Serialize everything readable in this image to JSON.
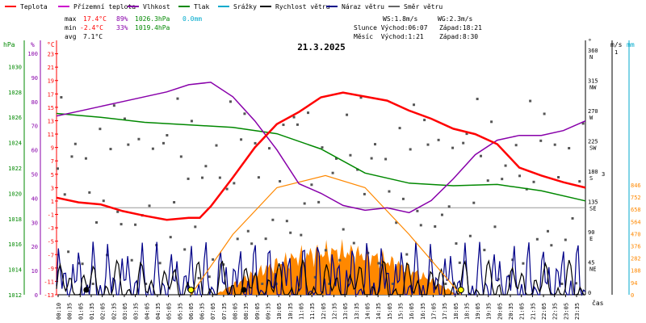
{
  "chart_data": {
    "type": "line",
    "title": "21.3.2025",
    "legend": [
      {
        "label": "Teplota",
        "color": "#ff0000"
      },
      {
        "label": "Přízemní teplota",
        "color": "#cc00cc"
      },
      {
        "label": "Vlhkost",
        "color": "#8800aa"
      },
      {
        "label": "Tlak",
        "color": "#008800"
      },
      {
        "label": "Srážky",
        "color": "#00aacc"
      },
      {
        "label": "Rychlost větru",
        "color": "#000000"
      },
      {
        "label": "Náraz větru",
        "color": "#000088"
      },
      {
        "label": "Směr větru",
        "color": "#666666"
      }
    ],
    "stats": {
      "max_label": "max",
      "min_label": "min",
      "avg_label": "avg",
      "max_temp": "17.4°C",
      "max_hum": "89%",
      "max_press": "1026.3hPa",
      "max_rain": "0.0mm",
      "min_temp": "-2.4°C",
      "min_hum": "33%",
      "min_press": "1019.4hPa",
      "avg_temp": "7.1°C",
      "ws": "WS:1.8m/s",
      "wg": "WG:2.3m/s",
      "sun": "Slunce Východ:06:07   Západ:18:21",
      "moon": "Měsíc  Východ:1:21    Západ:8:30"
    },
    "axes": {
      "hpa_title": "hPa",
      "pct_title": "%",
      "c_title": "°C",
      "deg_title": "°",
      "ms_title": "m/s",
      "mm_title": "mm",
      "x_title": "čas",
      "hpa_ticks": [
        "1030",
        "1028",
        "1026",
        "1024",
        "1022",
        "1020",
        "1018",
        "1016",
        "1014",
        "1012"
      ],
      "pct_ticks": [
        "100",
        "90",
        "80",
        "70",
        "60",
        "50",
        "40",
        "30",
        "20",
        "10",
        "0"
      ],
      "c_ticks": [
        "23",
        "21",
        "19",
        "17",
        "15",
        "13",
        "11",
        "9",
        "7",
        "5",
        "3",
        "1",
        "-1",
        "-3",
        "-5",
        "-7",
        "-9",
        "-11",
        "-13"
      ],
      "deg_ticks": [
        "360",
        "315",
        "270",
        "225",
        "180",
        "135",
        "90",
        "45",
        "0"
      ],
      "dir_ticks": [
        "N",
        "NW",
        "W",
        "SW",
        "S",
        "SE",
        "E",
        "NE",
        ""
      ],
      "ms_ticks": [
        "1",
        "3"
      ],
      "mm_ticks": [
        "846",
        "752",
        "658",
        "564",
        "470",
        "376",
        "282",
        "188",
        "94",
        "0"
      ],
      "x_ticks": [
        "00:10",
        "00:35",
        "01:05",
        "01:35",
        "02:05",
        "02:35",
        "03:05",
        "03:35",
        "04:05",
        "04:35",
        "05:05",
        "05:35",
        "06:05",
        "06:35",
        "07:05",
        "07:35",
        "08:05",
        "08:35",
        "09:05",
        "09:35",
        "10:05",
        "10:35",
        "11:05",
        "11:35",
        "12:05",
        "12:35",
        "13:05",
        "13:35",
        "14:05",
        "14:35",
        "15:05",
        "15:35",
        "16:05",
        "16:35",
        "17:05",
        "17:35",
        "18:05",
        "18:35",
        "19:05",
        "19:35",
        "20:05",
        "20:35",
        "21:05",
        "21:35",
        "22:05",
        "22:35",
        "23:05",
        "23:35"
      ],
      "c_range": [
        -13,
        25
      ]
    },
    "series": {
      "teplota": {
        "unit": "°C",
        "x": [
          0,
          1,
          2,
          3,
          4,
          5,
          6,
          6.5,
          7,
          8,
          9,
          10,
          11,
          12,
          13,
          14,
          15,
          16,
          17,
          18,
          19,
          20,
          21,
          22,
          23,
          24
        ],
        "y": [
          1.5,
          0.8,
          0.5,
          -0.5,
          -1.2,
          -1.8,
          -1.5,
          -1.5,
          0.2,
          4.5,
          9,
          12.5,
          14.3,
          16.5,
          17.2,
          16.6,
          16,
          14.5,
          13.3,
          11.8,
          11,
          9.5,
          6,
          4.8,
          3.8,
          3
        ]
      },
      "vlhkost": {
        "unit": "%",
        "x": [
          0,
          1,
          2,
          3,
          4,
          5,
          6,
          7,
          8,
          9,
          10,
          11,
          12,
          13,
          14,
          15,
          16,
          17,
          18,
          19,
          20,
          21,
          22,
          23,
          24
        ],
        "y": [
          74,
          76,
          78,
          80,
          82,
          84,
          87,
          88,
          82,
          72,
          60,
          46,
          42,
          37,
          35,
          36,
          34,
          39,
          48,
          58,
          64,
          66,
          66,
          68,
          72
        ]
      },
      "tlak": {
        "unit": "hPa",
        "x": [
          0,
          2,
          4,
          6,
          8,
          10,
          12,
          14,
          16,
          18,
          20,
          22,
          24
        ],
        "y": [
          1026.3,
          1026,
          1025.6,
          1025.4,
          1025.2,
          1024.7,
          1023.5,
          1021.6,
          1020.8,
          1020.6,
          1020.7,
          1020.2,
          1019.4
        ]
      },
      "slunce": {
        "unit": "°C",
        "x": [
          6.1,
          8,
          10,
          12.2,
          14,
          16,
          18.35
        ],
        "y": [
          -13,
          -4,
          3,
          4.8,
          3,
          -4,
          -13
        ]
      }
    },
    "xlim": [
      0,
      24
    ]
  }
}
